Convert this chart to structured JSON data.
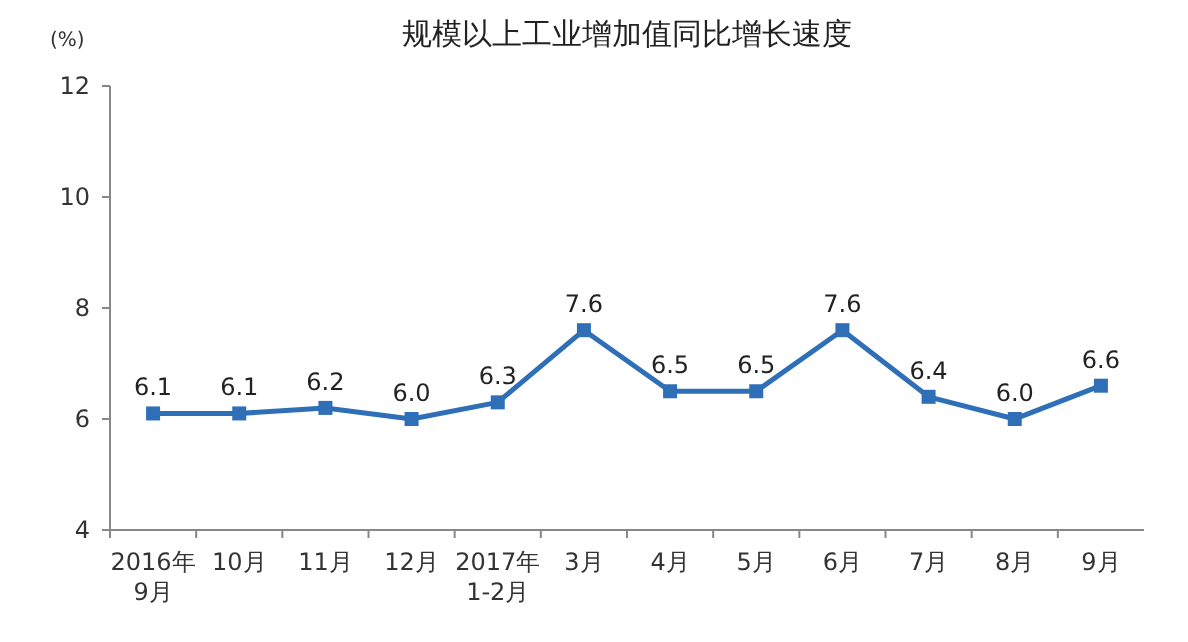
{
  "chart_data": {
    "type": "line",
    "title": "规模以上工业增加值同比增长速度",
    "ylabel": "(%)",
    "categories": [
      "2016年\n9月",
      "10月",
      "11月",
      "12月",
      "2017年\n1-2月",
      "3月",
      "4月",
      "5月",
      "6月",
      "7月",
      "8月",
      "9月"
    ],
    "series": [
      {
        "color": "#2e6fb7",
        "values": [
          6.1,
          6.1,
          6.2,
          6.0,
          6.3,
          7.6,
          6.5,
          6.5,
          7.6,
          6.4,
          6.0,
          6.6
        ],
        "value_labels": [
          "6.1",
          "6.1",
          "6.2",
          "6.0",
          "6.3",
          "7.6",
          "6.5",
          "6.5",
          "7.6",
          "6.4",
          "6.0",
          "6.6"
        ]
      }
    ],
    "ylim": [
      4,
      12
    ],
    "yticks": [
      4,
      6,
      8,
      10,
      12
    ],
    "grid": false,
    "marker": "square",
    "line_style": "solid"
  }
}
